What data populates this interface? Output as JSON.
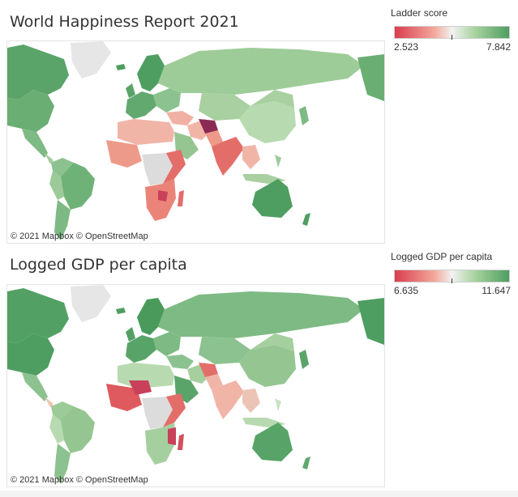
{
  "maps": [
    {
      "title": "World Happiness Report 2021",
      "attribution": "© 2021 Mapbox © OpenStreetMap",
      "legend": {
        "title": "Ladder score",
        "min_label": "2.523",
        "max_label": "7.842",
        "colors": {
          "low": "#d93d4f",
          "mid": "#f2f2f2",
          "high": "#4e9e61"
        }
      }
    },
    {
      "title": "Logged GDP per capita",
      "attribution": "© 2021 Mapbox © OpenStreetMap",
      "legend": {
        "title": "Logged GDP per capita",
        "min_label": "6.635",
        "max_label": "11.647",
        "colors": {
          "low": "#d93d4f",
          "mid": "#f2f2f2",
          "high": "#4e9e61"
        }
      }
    }
  ],
  "no_data_color": "#dcdcdc"
}
